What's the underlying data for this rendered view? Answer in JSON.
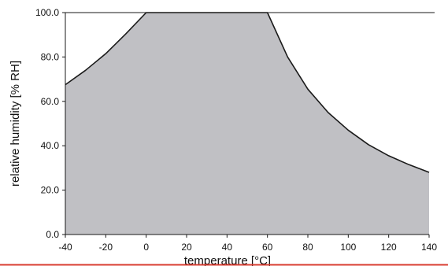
{
  "chart_data": {
    "type": "area",
    "title": "",
    "xlabel": "temperature [°C]",
    "ylabel": "relative humidity [% RH]",
    "xlim": [
      -40,
      140
    ],
    "ylim": [
      0,
      100
    ],
    "grid": false,
    "legend": "none",
    "x_ticks": [
      "-40",
      "-20",
      "0",
      "20",
      "40",
      "60",
      "80",
      "100",
      "120",
      "140"
    ],
    "y_ticks": [
      "0.0",
      "20.0",
      "40.0",
      "60.0",
      "80.0",
      "100.0"
    ],
    "fill_color": "#c0c0c4",
    "line_color": "#1a1a1a",
    "footer_line_color": "#d83a2e",
    "series": [
      {
        "x": [
          -40,
          -30,
          -20,
          -10,
          0,
          60,
          70,
          80,
          90,
          100,
          110,
          120,
          130,
          140
        ],
        "values": [
          67.5,
          74,
          81.5,
          90.5,
          100,
          100,
          80,
          65.5,
          55,
          47,
          40.5,
          35.5,
          31.5,
          28
        ]
      }
    ]
  }
}
